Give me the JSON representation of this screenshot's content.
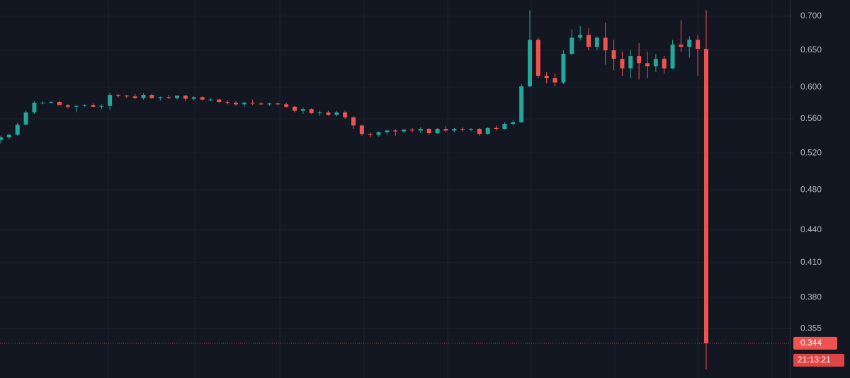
{
  "chart_data": {
    "type": "candlestick",
    "log_scale": true,
    "grid": true,
    "up_color": "#26a69a",
    "down_color": "#ef5350",
    "ylim": [
      0.319,
      0.725
    ],
    "yticks": [
      {
        "value": 0.7,
        "label": "0.700"
      },
      {
        "value": 0.65,
        "label": "0.650"
      },
      {
        "value": 0.6,
        "label": "0.600"
      },
      {
        "value": 0.56,
        "label": "0.560"
      },
      {
        "value": 0.52,
        "label": "0.520"
      },
      {
        "value": 0.48,
        "label": "0.480"
      },
      {
        "value": 0.44,
        "label": "0.440"
      },
      {
        "value": 0.41,
        "label": "0.410"
      },
      {
        "value": 0.38,
        "label": "0.380"
      },
      0.355
    ],
    "last_price": 0.344,
    "countdown": "21:13:21",
    "open": [
      0.535,
      0.538,
      0.541,
      0.553,
      0.568,
      0.58,
      0.58,
      0.581,
      0.577,
      0.575,
      0.576,
      0.577,
      0.575,
      0.576,
      0.59,
      0.589,
      0.588,
      0.586,
      0.59,
      0.586,
      0.587,
      0.586,
      0.589,
      0.585,
      0.587,
      0.584,
      0.584,
      0.581,
      0.58,
      0.578,
      0.58,
      0.579,
      0.578,
      0.579,
      0.578,
      0.575,
      0.57,
      0.572,
      0.567,
      0.568,
      0.565,
      0.568,
      0.562,
      0.552,
      0.542,
      0.541,
      0.544,
      0.546,
      0.545,
      0.547,
      0.546,
      0.548,
      0.543,
      0.548,
      0.546,
      0.548,
      0.547,
      0.548,
      0.542,
      0.549,
      0.548,
      0.554,
      0.556,
      0.601,
      0.665,
      0.615,
      0.612,
      0.606,
      0.645,
      0.668,
      0.672,
      0.655,
      0.668,
      0.65,
      0.638,
      0.625,
      0.642,
      0.632,
      0.628,
      0.638,
      0.625,
      0.658,
      0.655,
      0.665,
      0.652
    ],
    "high": [
      0.54,
      0.542,
      0.555,
      0.57,
      0.582,
      0.582,
      0.582,
      0.582,
      0.578,
      0.577,
      0.578,
      0.579,
      0.578,
      0.593,
      0.591,
      0.59,
      0.591,
      0.592,
      0.591,
      0.588,
      0.59,
      0.589,
      0.59,
      0.588,
      0.588,
      0.586,
      0.585,
      0.583,
      0.582,
      0.581,
      0.584,
      0.581,
      0.58,
      0.58,
      0.58,
      0.576,
      0.574,
      0.573,
      0.57,
      0.57,
      0.57,
      0.57,
      0.563,
      0.553,
      0.544,
      0.545,
      0.547,
      0.548,
      0.548,
      0.549,
      0.55,
      0.549,
      0.549,
      0.551,
      0.549,
      0.55,
      0.549,
      0.549,
      0.55,
      0.552,
      0.556,
      0.558,
      0.604,
      0.709,
      0.668,
      0.62,
      0.618,
      0.65,
      0.68,
      0.685,
      0.682,
      0.67,
      0.69,
      0.665,
      0.648,
      0.65,
      0.66,
      0.648,
      0.645,
      0.642,
      0.665,
      0.694,
      0.67,
      0.672,
      0.709
    ],
    "low": [
      0.531,
      0.536,
      0.54,
      0.552,
      0.566,
      0.578,
      0.579,
      0.577,
      0.573,
      0.568,
      0.575,
      0.574,
      0.572,
      0.571,
      0.587,
      0.586,
      0.585,
      0.584,
      0.585,
      0.583,
      0.585,
      0.584,
      0.582,
      0.583,
      0.583,
      0.582,
      0.58,
      0.578,
      0.576,
      0.575,
      0.577,
      0.577,
      0.576,
      0.577,
      0.574,
      0.568,
      0.566,
      0.566,
      0.564,
      0.564,
      0.563,
      0.56,
      0.548,
      0.54,
      0.538,
      0.539,
      0.541,
      0.54,
      0.543,
      0.544,
      0.543,
      0.541,
      0.542,
      0.544,
      0.544,
      0.545,
      0.545,
      0.54,
      0.541,
      0.546,
      0.547,
      0.552,
      0.555,
      0.6,
      0.612,
      0.605,
      0.601,
      0.604,
      0.643,
      0.664,
      0.65,
      0.65,
      0.63,
      0.622,
      0.615,
      0.612,
      0.61,
      0.612,
      0.62,
      0.618,
      0.624,
      0.648,
      0.64,
      0.615,
      0.325
    ],
    "close": [
      0.538,
      0.541,
      0.553,
      0.568,
      0.58,
      0.58,
      0.581,
      0.577,
      0.575,
      0.576,
      0.577,
      0.575,
      0.576,
      0.59,
      0.589,
      0.588,
      0.586,
      0.59,
      0.586,
      0.587,
      0.586,
      0.589,
      0.585,
      0.587,
      0.584,
      0.584,
      0.581,
      0.58,
      0.578,
      0.58,
      0.579,
      0.578,
      0.579,
      0.578,
      0.575,
      0.57,
      0.572,
      0.567,
      0.568,
      0.565,
      0.568,
      0.562,
      0.552,
      0.542,
      0.541,
      0.544,
      0.546,
      0.545,
      0.547,
      0.546,
      0.548,
      0.543,
      0.548,
      0.546,
      0.548,
      0.547,
      0.548,
      0.542,
      0.549,
      0.548,
      0.554,
      0.556,
      0.601,
      0.665,
      0.615,
      0.612,
      0.606,
      0.645,
      0.668,
      0.672,
      0.655,
      0.668,
      0.65,
      0.638,
      0.625,
      0.642,
      0.632,
      0.628,
      0.638,
      0.625,
      0.658,
      0.655,
      0.665,
      0.652,
      0.344
    ]
  }
}
